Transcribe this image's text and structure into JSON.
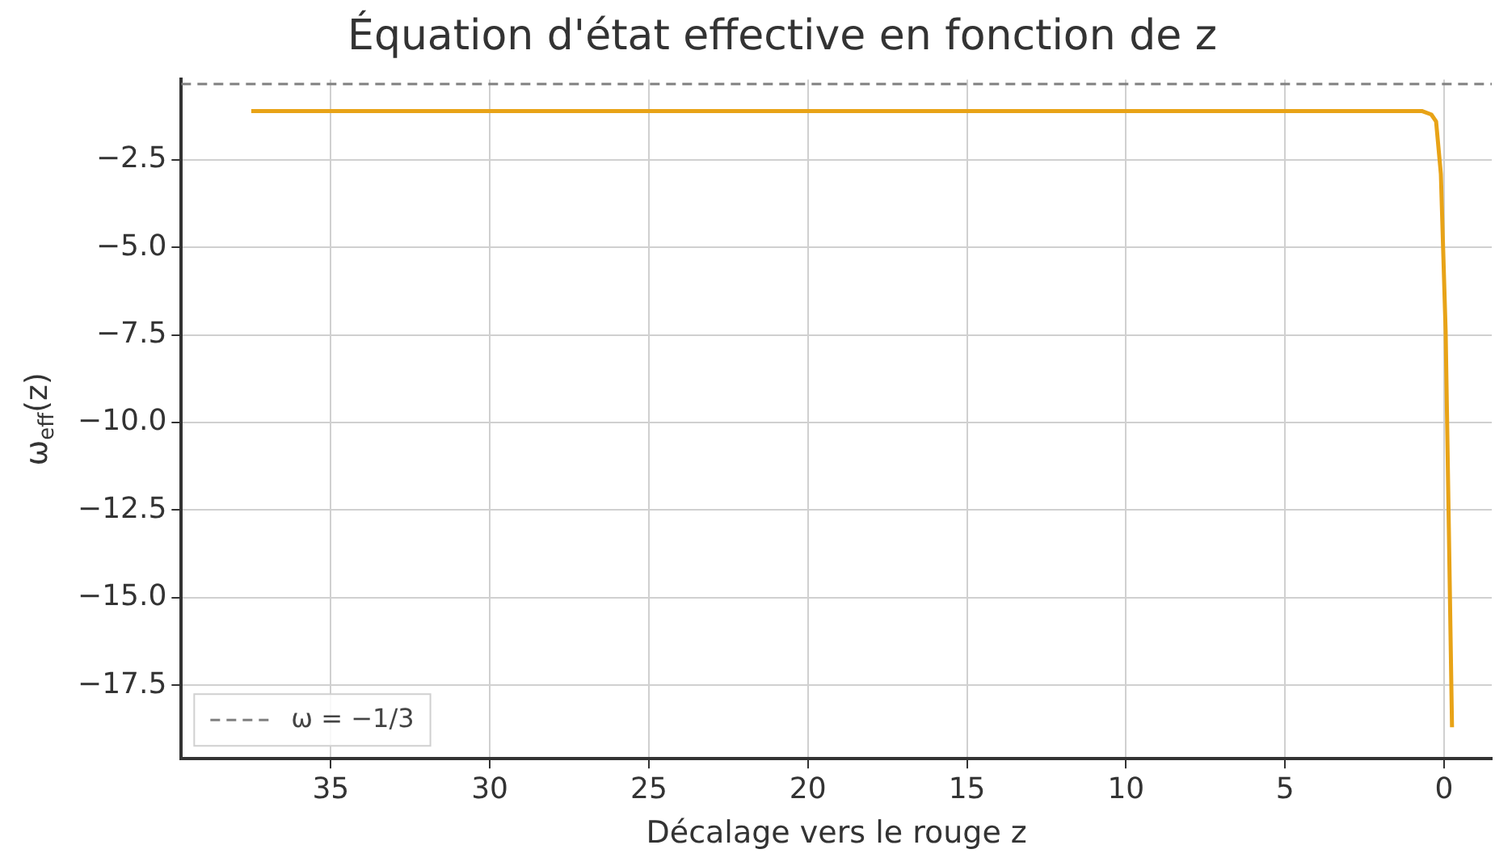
{
  "chart_data": {
    "type": "line",
    "title": "Équation d'état effective en fonction de z",
    "xlabel": "Décalage vers le rouge z",
    "ylabel": "ω$_{eff}$(z)",
    "xlim": [
      39.7,
      -1.5
    ],
    "xticks": [
      35,
      30,
      25,
      20,
      15,
      10,
      5,
      0
    ],
    "ylim": [
      -19.6,
      -0.2
    ],
    "yticks": [
      {
        "value": -2.5,
        "label": "−2.5"
      },
      {
        "value": -5,
        "label": "−5.0"
      },
      {
        "value": -7.5,
        "label": "−7.5"
      },
      {
        "value": -10,
        "label": "−10.0"
      },
      {
        "value": -12.5,
        "label": "−12.5"
      },
      {
        "value": -15,
        "label": "−15.0"
      },
      {
        "value": -17.5,
        "label": "−17.5"
      }
    ],
    "grid": true,
    "legend": "bottom left",
    "marker": "none",
    "series": [
      {
        "color": "#e8a317",
        "x": [
          37.5,
          0.7,
          0.4,
          0.25,
          0.1,
          -0.05,
          -0.15,
          -0.25
        ],
        "values": [
          -1.1,
          -1.1,
          -1.2,
          -1.4,
          -2.9,
          -7.4,
          -13,
          -18.7
        ]
      },
      {
        "name": "ω = −1/3",
        "color": "#808080",
        "line_style": "dashed",
        "x": [
          39.7,
          -1.5
        ],
        "values": [
          -0.33,
          -0.33
        ]
      }
    ]
  }
}
